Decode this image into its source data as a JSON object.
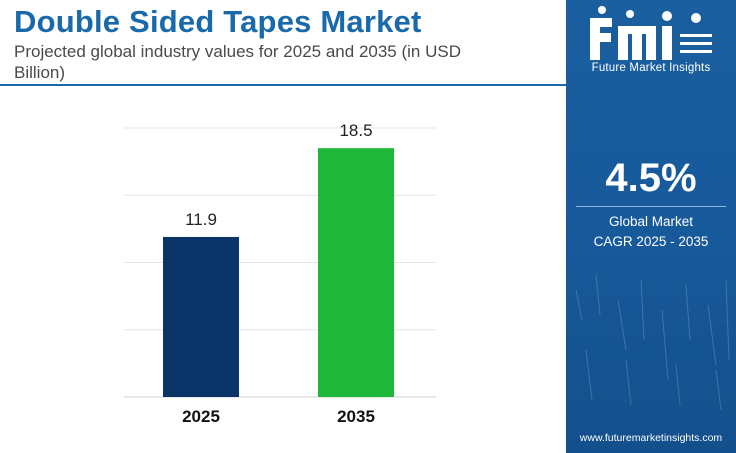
{
  "header": {
    "title": "Double Sided Tapes Market",
    "subtitle": "Projected global industry values for 2025 and 2035 (in USD Billion)"
  },
  "chart_data": {
    "type": "bar",
    "categories": [
      "2025",
      "2035"
    ],
    "values": [
      11.9,
      18.5
    ],
    "value_labels": [
      "11.9",
      "18.5"
    ],
    "title": "",
    "xlabel": "",
    "ylabel": "",
    "ylim": [
      0,
      20
    ],
    "grid": true,
    "bar_colors": [
      "#0b3468",
      "#1fb838"
    ]
  },
  "side_panel": {
    "logo_text": "Future Market Insights",
    "cagr_value": "4.5%",
    "cagr_label_line1": "Global Market",
    "cagr_label_line2": "CAGR 2025 - 2035",
    "website": "www.futuremarketinsights.com",
    "background_color": "#1a5f9f"
  }
}
